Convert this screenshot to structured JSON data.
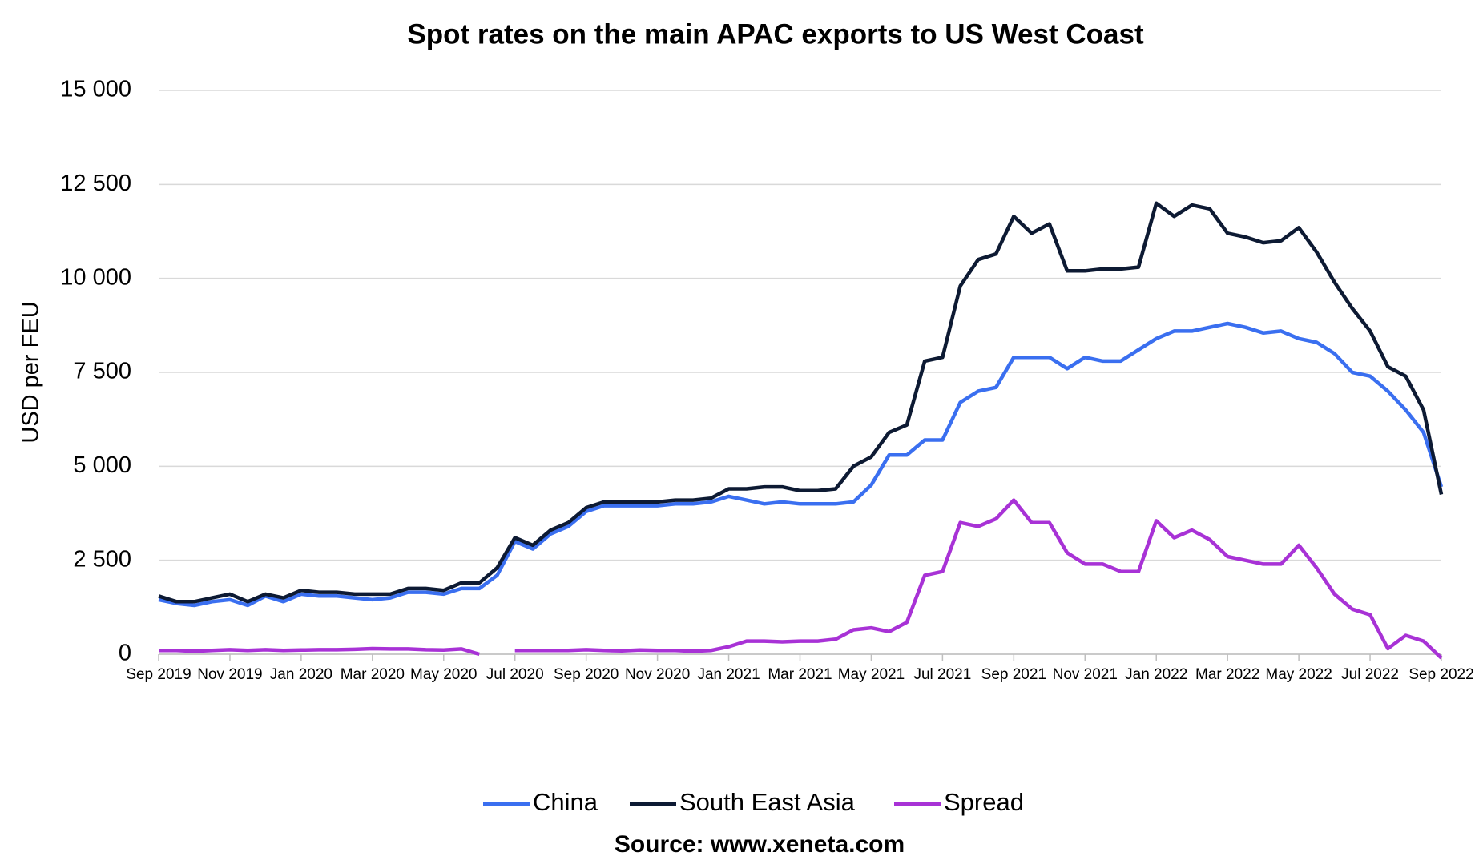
{
  "chart_data": {
    "type": "line",
    "title": "Spot rates on the main APAC exports to US West Coast",
    "y_label": "USD per FEU",
    "source": "Source: www.xeneta.com",
    "xlim": [
      0,
      36
    ],
    "xticks": [
      {
        "value": 0,
        "label": "Sep 2019"
      },
      {
        "value": 2,
        "label": "Nov 2019"
      },
      {
        "value": 4,
        "label": "Jan 2020"
      },
      {
        "value": 6,
        "label": "Mar 2020"
      },
      {
        "value": 8,
        "label": "May 2020"
      },
      {
        "value": 10,
        "label": "Jul 2020"
      },
      {
        "value": 12,
        "label": "Sep 2020"
      },
      {
        "value": 14,
        "label": "Nov 2020"
      },
      {
        "value": 16,
        "label": "Jan 2021"
      },
      {
        "value": 18,
        "label": "Mar 2021"
      },
      {
        "value": 20,
        "label": "May 2021"
      },
      {
        "value": 22,
        "label": "Jul 2021"
      },
      {
        "value": 24,
        "label": "Sep 2021"
      },
      {
        "value": 26,
        "label": "Nov 2021"
      },
      {
        "value": 28,
        "label": "Jan 2022"
      },
      {
        "value": 30,
        "label": "Mar 2022"
      },
      {
        "value": 32,
        "label": "May 2022"
      },
      {
        "value": 34,
        "label": "Jul 2022"
      },
      {
        "value": 36,
        "label": "Sep 2022"
      }
    ],
    "ylim": [
      0,
      15000
    ],
    "yticks": [
      0,
      {
        "value": 2500,
        "label": "2 500"
      },
      {
        "value": 5000,
        "label": "5 000"
      },
      {
        "value": 7500,
        "label": "7 500"
      },
      {
        "value": 10000,
        "label": "10 000"
      },
      {
        "value": 12500,
        "label": "12 500"
      },
      {
        "value": 15000,
        "label": "15 000"
      }
    ],
    "grid": true,
    "legend": "bottom",
    "x": [
      0,
      0.5,
      1,
      1.5,
      2,
      2.5,
      3,
      3.5,
      4,
      4.5,
      5,
      5.5,
      6,
      6.5,
      7,
      7.5,
      8,
      8.5,
      9,
      9.5,
      10,
      10.5,
      11,
      11.5,
      12,
      12.5,
      13,
      13.5,
      14,
      14.5,
      15,
      15.5,
      16,
      16.5,
      17,
      17.5,
      18,
      18.5,
      19,
      19.5,
      20,
      20.5,
      21,
      21.5,
      22,
      22.5,
      23,
      23.5,
      24,
      24.5,
      25,
      25.5,
      26,
      26.5,
      27,
      27.5,
      28,
      28.5,
      29,
      29.5,
      30,
      30.5,
      31,
      31.5,
      32,
      32.5,
      33,
      33.5,
      34,
      34.5,
      35,
      35.5,
      36
    ],
    "series": [
      {
        "name": "China",
        "color": "#3a6ff0",
        "values": [
          1450,
          1350,
          1300,
          1400,
          1450,
          1300,
          1550,
          1400,
          1600,
          1550,
          1550,
          1500,
          1450,
          1500,
          1650,
          1650,
          1600,
          1750,
          1750,
          2100,
          3000,
          2800,
          3200,
          3400,
          3800,
          3950,
          3950,
          3950,
          3950,
          4000,
          4000,
          4050,
          4200,
          4100,
          4000,
          4050,
          4000,
          4000,
          4000,
          4050,
          4500,
          5300,
          5300,
          5700,
          5700,
          6700,
          7000,
          7100,
          7900,
          7900,
          7900,
          7600,
          7900,
          7800,
          7800,
          8100,
          8400,
          8600,
          8600,
          8700,
          8800,
          8700,
          8550,
          8600,
          8400,
          8300,
          8000,
          7500,
          7400,
          7000,
          6500,
          5900,
          4450
        ]
      },
      {
        "name": "South East Asia",
        "color": "#0d1a33",
        "values": [
          1550,
          1400,
          1400,
          1500,
          1600,
          1400,
          1600,
          1500,
          1700,
          1650,
          1650,
          1600,
          1600,
          1600,
          1750,
          1750,
          1700,
          1900,
          1900,
          2300,
          3100,
          2900,
          3300,
          3500,
          3900,
          4050,
          4050,
          4050,
          4050,
          4100,
          4100,
          4150,
          4400,
          4400,
          4450,
          4450,
          4350,
          4350,
          4400,
          5000,
          5250,
          5900,
          6100,
          7800,
          7900,
          9800,
          10500,
          10650,
          11650,
          11200,
          11450,
          10200,
          10200,
          10250,
          10250,
          10300,
          12000,
          11650,
          11950,
          11850,
          11200,
          11100,
          10950,
          11000,
          11350,
          10700,
          9900,
          9200,
          8600,
          7650,
          7400,
          6500,
          4250
        ]
      },
      {
        "name": "Spread",
        "color": "#a832d6",
        "values": [
          100,
          100,
          80,
          100,
          120,
          100,
          120,
          100,
          110,
          120,
          120,
          130,
          150,
          140,
          140,
          120,
          110,
          140,
          0,
          null,
          100,
          100,
          100,
          100,
          120,
          100,
          90,
          110,
          100,
          100,
          80,
          100,
          200,
          350,
          350,
          330,
          350,
          350,
          400,
          650,
          700,
          600,
          850,
          2100,
          2200,
          3500,
          3400,
          3600,
          4100,
          3500,
          3500,
          2700,
          2400,
          2400,
          2200,
          2200,
          3550,
          3100,
          3300,
          3050,
          2600,
          2500,
          2400,
          2400,
          2900,
          2300,
          1600,
          1200,
          1050,
          150,
          500,
          350,
          -100
        ]
      }
    ]
  }
}
